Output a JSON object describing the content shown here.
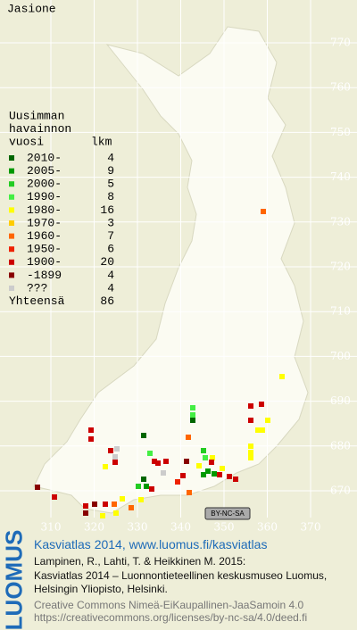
{
  "title": "Jasione",
  "legend": {
    "heading": [
      "Uusimman",
      "havainnon",
      "vuosi"
    ],
    "count_heading": "lkm",
    "rows": [
      {
        "label": "2010-",
        "count": 4,
        "color": "#006600"
      },
      {
        "label": "2005-",
        "count": 9,
        "color": "#009900"
      },
      {
        "label": "2000-",
        "count": 5,
        "color": "#22cc22"
      },
      {
        "label": "1990-",
        "count": 8,
        "color": "#44ee44"
      },
      {
        "label": "1980-",
        "count": 16,
        "color": "#ffff00"
      },
      {
        "label": "1970-",
        "count": 3,
        "color": "#ffcc00"
      },
      {
        "label": "1960-",
        "count": 7,
        "color": "#ff6600"
      },
      {
        "label": "1950-",
        "count": 6,
        "color": "#ee2200"
      },
      {
        "label": "1900-",
        "count": 20,
        "color": "#cc0000"
      },
      {
        "label": "-1899",
        "count": 4,
        "color": "#880000"
      },
      {
        "label": "???",
        "count": 4,
        "color": "#cccccc"
      }
    ],
    "total": {
      "label": "Yhteensä",
      "count": 86
    }
  },
  "grid": {
    "northing": [
      770,
      760,
      750,
      740,
      730,
      720,
      710,
      700,
      690,
      680,
      670
    ],
    "easting": [
      310,
      320,
      330,
      340,
      350,
      360,
      370
    ]
  },
  "license_badge": "BY-NC-SA",
  "footer": {
    "logo": "LUOMUS",
    "lines": [
      "Kasviatlas 2014, www.luomus.fi/kasviatlas",
      "Lampinen, R., Lahti, T. & Heikkinen M. 2015:",
      "Kasviatlas 2014 – Luonnontieteellinen keskusmuseo Luomus,",
      "Helsingin Yliopisto, Helsinki.",
      "Creative Commons Nimeä-EiKaupallinen-JaaSamoin 4.0",
      "https://creativecommons.org/licenses/by-nc-sa/4.0/deed.fi"
    ]
  }
}
